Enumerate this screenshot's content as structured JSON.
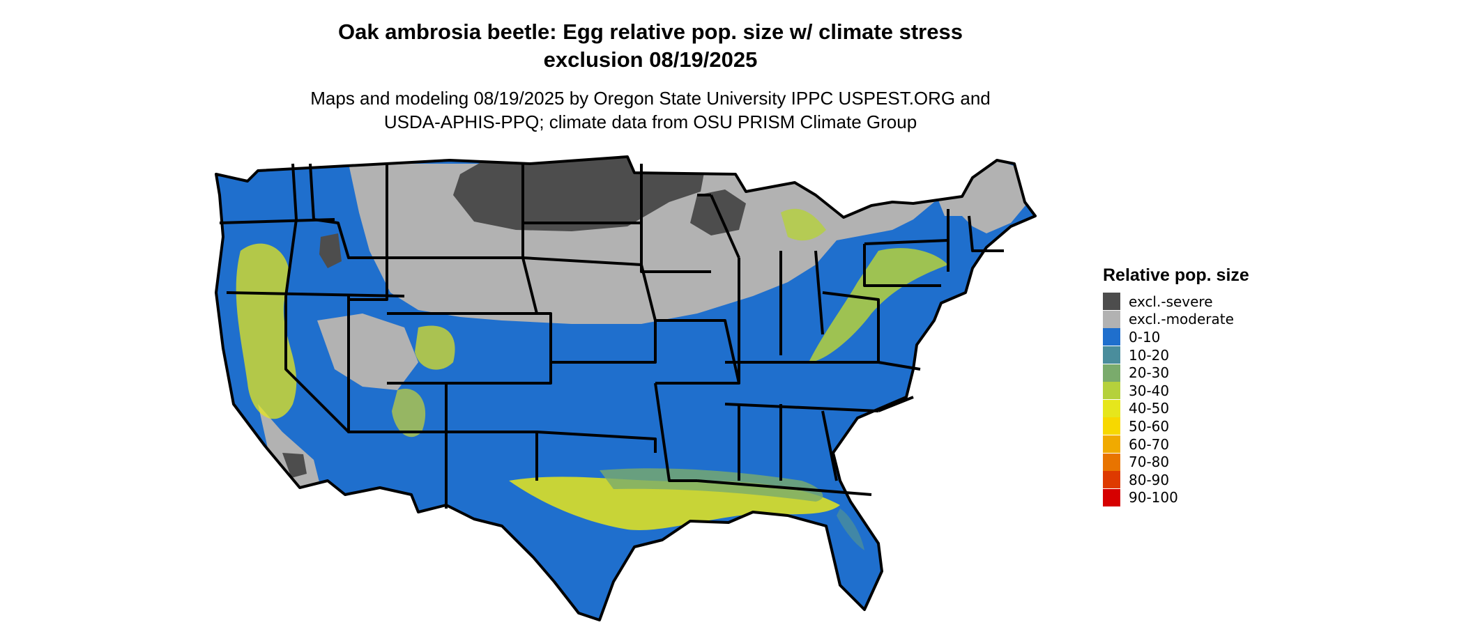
{
  "title": {
    "line1": "Oak ambrosia beetle: Egg relative pop. size w/ climate stress",
    "line2": "exclusion 08/19/2025"
  },
  "subtitle": {
    "line1": "Maps and modeling 08/19/2025 by Oregon State University IPPC USPEST.ORG and",
    "line2": "USDA-APHIS-PPQ; climate data from OSU PRISM Climate Group"
  },
  "legend": {
    "title": "Relative pop. size",
    "items": [
      {
        "label": "excl.-severe",
        "color": "#4d4d4d"
      },
      {
        "label": "excl.-moderate",
        "color": "#b2b2b2"
      },
      {
        "label": "0-10",
        "color": "#1f6fcd"
      },
      {
        "label": "10-20",
        "color": "#4a8d9c"
      },
      {
        "label": "20-30",
        "color": "#7aab6c"
      },
      {
        "label": "30-40",
        "color": "#b5d13c"
      },
      {
        "label": "40-50",
        "color": "#e6e61c"
      },
      {
        "label": "50-60",
        "color": "#f7d800"
      },
      {
        "label": "60-70",
        "color": "#f0aa00"
      },
      {
        "label": "70-80",
        "color": "#e87400"
      },
      {
        "label": "80-90",
        "color": "#de3a00"
      },
      {
        "label": "90-100",
        "color": "#d60000"
      }
    ]
  },
  "map": {
    "region": "Contiguous United States",
    "dominant_class": "0-10",
    "excluded_regions": [
      "northern plains",
      "upper midwest",
      "northern rockies",
      "northern new england"
    ],
    "hotspot_regions": [
      "gulf coast",
      "western mountains",
      "appalachians",
      "great lakes shore"
    ]
  }
}
